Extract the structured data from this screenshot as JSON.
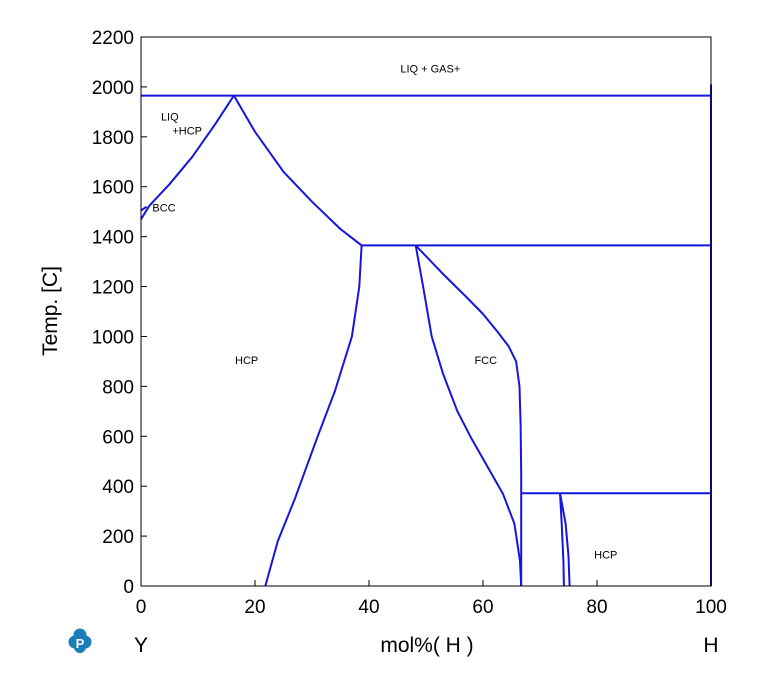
{
  "chart_data": {
    "type": "line",
    "xlabel": "mol%( H )",
    "ylabel": "Temp. [C]",
    "xlim": [
      0,
      100
    ],
    "ylim": [
      0,
      2200
    ],
    "x_ticks": [
      0,
      20,
      40,
      60,
      80,
      100
    ],
    "y_ticks": [
      0,
      200,
      400,
      600,
      800,
      1000,
      1200,
      1400,
      1600,
      1800,
      2000,
      2200
    ],
    "x_endpoints": {
      "left": "Y",
      "right": "H"
    },
    "grid": false,
    "line_color": "#1515e0",
    "series": [
      {
        "points": [
          [
            0,
            1965
          ],
          [
            100,
            1965
          ]
        ]
      },
      {
        "points": [
          [
            0,
            1470
          ],
          [
            1.5,
            1525
          ],
          [
            5,
            1610
          ],
          [
            9,
            1720
          ],
          [
            13,
            1850
          ],
          [
            16.3,
            1965
          ]
        ]
      },
      {
        "points": [
          [
            16.3,
            1965
          ],
          [
            20,
            1820
          ],
          [
            25,
            1660
          ],
          [
            30,
            1540
          ],
          [
            35,
            1430
          ],
          [
            38.7,
            1365
          ]
        ]
      },
      {
        "points": [
          [
            0,
            1505
          ],
          [
            1,
            1520
          ]
        ]
      },
      {
        "points": [
          [
            38.7,
            1365
          ],
          [
            100,
            1365
          ]
        ]
      },
      {
        "points": [
          [
            38.7,
            1365
          ],
          [
            38.3,
            1200
          ],
          [
            37,
            1000
          ],
          [
            34,
            780
          ],
          [
            31,
            600
          ],
          [
            27,
            350
          ],
          [
            24,
            180
          ],
          [
            21.8,
            0
          ]
        ]
      },
      {
        "points": [
          [
            48.2,
            1365
          ],
          [
            49.5,
            1200
          ],
          [
            51,
            1000
          ],
          [
            53,
            850
          ],
          [
            55.5,
            700
          ],
          [
            58,
            590
          ],
          [
            61,
            470
          ],
          [
            63.5,
            370
          ],
          [
            65.5,
            250
          ],
          [
            66.5,
            100
          ],
          [
            66.7,
            0
          ]
        ]
      },
      {
        "points": [
          [
            48.2,
            1365
          ],
          [
            53,
            1250
          ],
          [
            57,
            1160
          ],
          [
            60,
            1090
          ],
          [
            62.5,
            1020
          ],
          [
            64.5,
            960
          ],
          [
            65.8,
            900
          ],
          [
            66.4,
            800
          ],
          [
            66.6,
            650
          ],
          [
            66.7,
            450
          ],
          [
            66.7,
            375
          ]
        ]
      },
      {
        "points": [
          [
            66.7,
            375
          ],
          [
            66.7,
            0
          ]
        ]
      },
      {
        "points": [
          [
            66.7,
            372
          ],
          [
            100,
            372
          ]
        ]
      },
      {
        "points": [
          [
            73.5,
            372
          ],
          [
            73.8,
            250
          ],
          [
            74.1,
            100
          ],
          [
            74.2,
            0
          ]
        ]
      },
      {
        "points": [
          [
            73.5,
            372
          ],
          [
            74.5,
            250
          ],
          [
            75.0,
            120
          ],
          [
            75.2,
            0
          ]
        ]
      },
      {
        "points": [
          [
            100,
            0
          ],
          [
            100,
            2010
          ]
        ]
      }
    ],
    "annotations": [
      {
        "text": "LIQ + GAS+",
        "x": 45.5,
        "y": 2057
      },
      {
        "text": "LIQ",
        "x": 3.5,
        "y": 1865
      },
      {
        "text": "+HCP",
        "x": 5.5,
        "y": 1810
      },
      {
        "text": "BCC",
        "x": 2,
        "y": 1500
      },
      {
        "text": "HCP",
        "x": 16.5,
        "y": 890
      },
      {
        "text": "FCC",
        "x": 58.5,
        "y": 890
      },
      {
        "text": "HCP",
        "x": 79.5,
        "y": 110
      }
    ]
  },
  "logo": {
    "name": "pandat-logo-icon",
    "color": "#1a7fb8"
  }
}
